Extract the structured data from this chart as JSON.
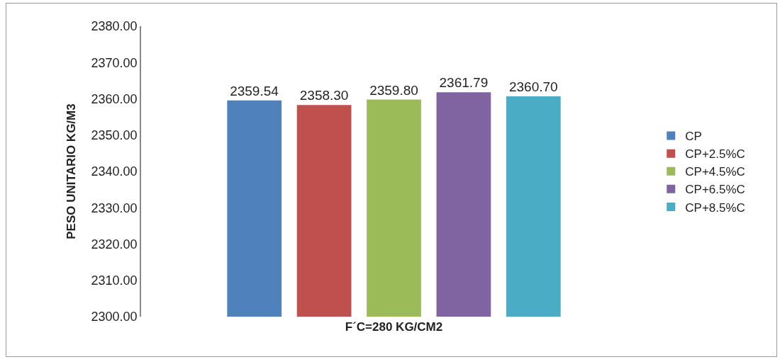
{
  "chart_data": {
    "type": "bar",
    "ylabel": "PESO UNITARIO KG/M3",
    "xlabel": "F´C=280 KG/CM2",
    "categories": [
      null
    ],
    "series": [
      {
        "name": "CP",
        "color": "#4f81bd",
        "values": [
          2359.54
        ],
        "value_labels": [
          "2359.54"
        ]
      },
      {
        "name": "CP+2.5%C",
        "color": "#c0504d",
        "values": [
          2358.3
        ],
        "value_labels": [
          "2358.30"
        ]
      },
      {
        "name": "CP+4.5%C",
        "color": "#9bbb59",
        "values": [
          2359.8
        ],
        "value_labels": [
          "2359.80"
        ]
      },
      {
        "name": "CP+6.5%C",
        "color": "#8064a2",
        "values": [
          2361.79
        ],
        "value_labels": [
          "2361.79"
        ]
      },
      {
        "name": "CP+8.5%C",
        "color": "#4bacc6",
        "values": [
          2360.7
        ],
        "value_labels": [
          "2360.70"
        ]
      }
    ],
    "ylim": [
      2300,
      2380
    ],
    "yticks": [
      {
        "value": 2300,
        "label": "2300.00"
      },
      {
        "value": 2310,
        "label": "2310.00"
      },
      {
        "value": 2320,
        "label": "2320.00"
      },
      {
        "value": 2330,
        "label": "2330.00"
      },
      {
        "value": 2340,
        "label": "2340.00"
      },
      {
        "value": 2350,
        "label": "2350.00"
      },
      {
        "value": 2360,
        "label": "2360.00"
      },
      {
        "value": 2370,
        "label": "2370.00"
      },
      {
        "value": 2380,
        "label": "2380.00"
      }
    ],
    "grid": false,
    "legend": "right"
  }
}
